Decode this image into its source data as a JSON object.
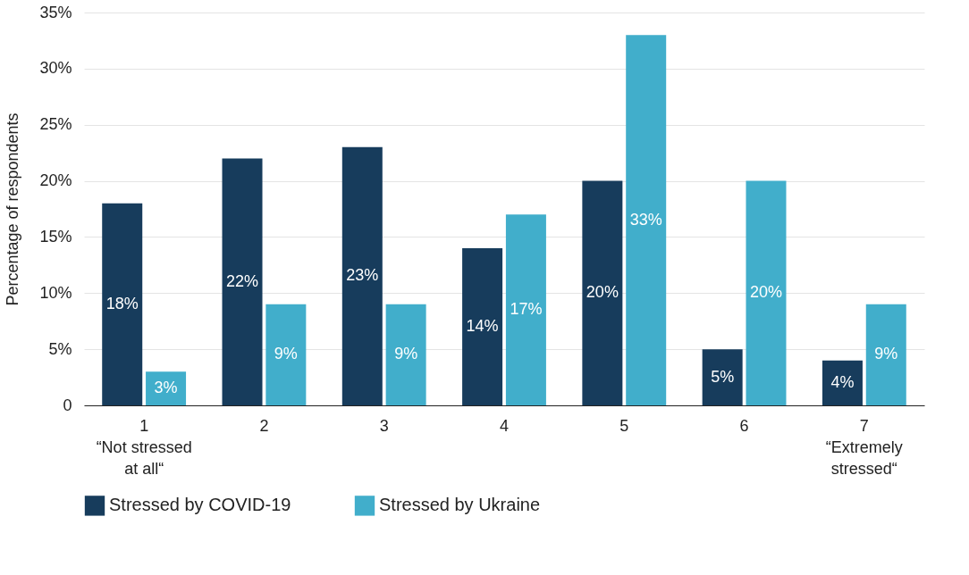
{
  "chart_data": {
    "type": "bar",
    "ylabel": "Percentage of respondents",
    "categories": [
      "1\n“Not stressed\nat all“",
      "2",
      "3",
      "4",
      "5",
      "6",
      "7\n“Extremely\nstressed“"
    ],
    "series": [
      {
        "name": "Stressed by COVID-19",
        "color": "#173c5c",
        "values": [
          18,
          22,
          23,
          14,
          20,
          5,
          4
        ],
        "value_labels": [
          "18%",
          "22%",
          "23%",
          "14%",
          "20%",
          "5%",
          "4%"
        ]
      },
      {
        "name": "Stressed by Ukraine",
        "color": "#41aecb",
        "values": [
          3,
          9,
          9,
          17,
          33,
          20,
          9
        ],
        "value_labels": [
          "3%",
          "9%",
          "9%",
          "17%",
          "33%",
          "20%",
          "9%"
        ]
      }
    ],
    "ylim": [
      0,
      35
    ],
    "yticks": [
      0,
      {
        "value": 5,
        "label": "5%"
      },
      {
        "value": 10,
        "label": "10%"
      },
      {
        "value": 15,
        "label": "15%"
      },
      {
        "value": 20,
        "label": "20%"
      },
      {
        "value": 25,
        "label": "25%"
      },
      {
        "value": 30,
        "label": "30%"
      },
      {
        "value": 35,
        "label": "35%"
      }
    ],
    "grid": "y",
    "legend": "bottom"
  }
}
